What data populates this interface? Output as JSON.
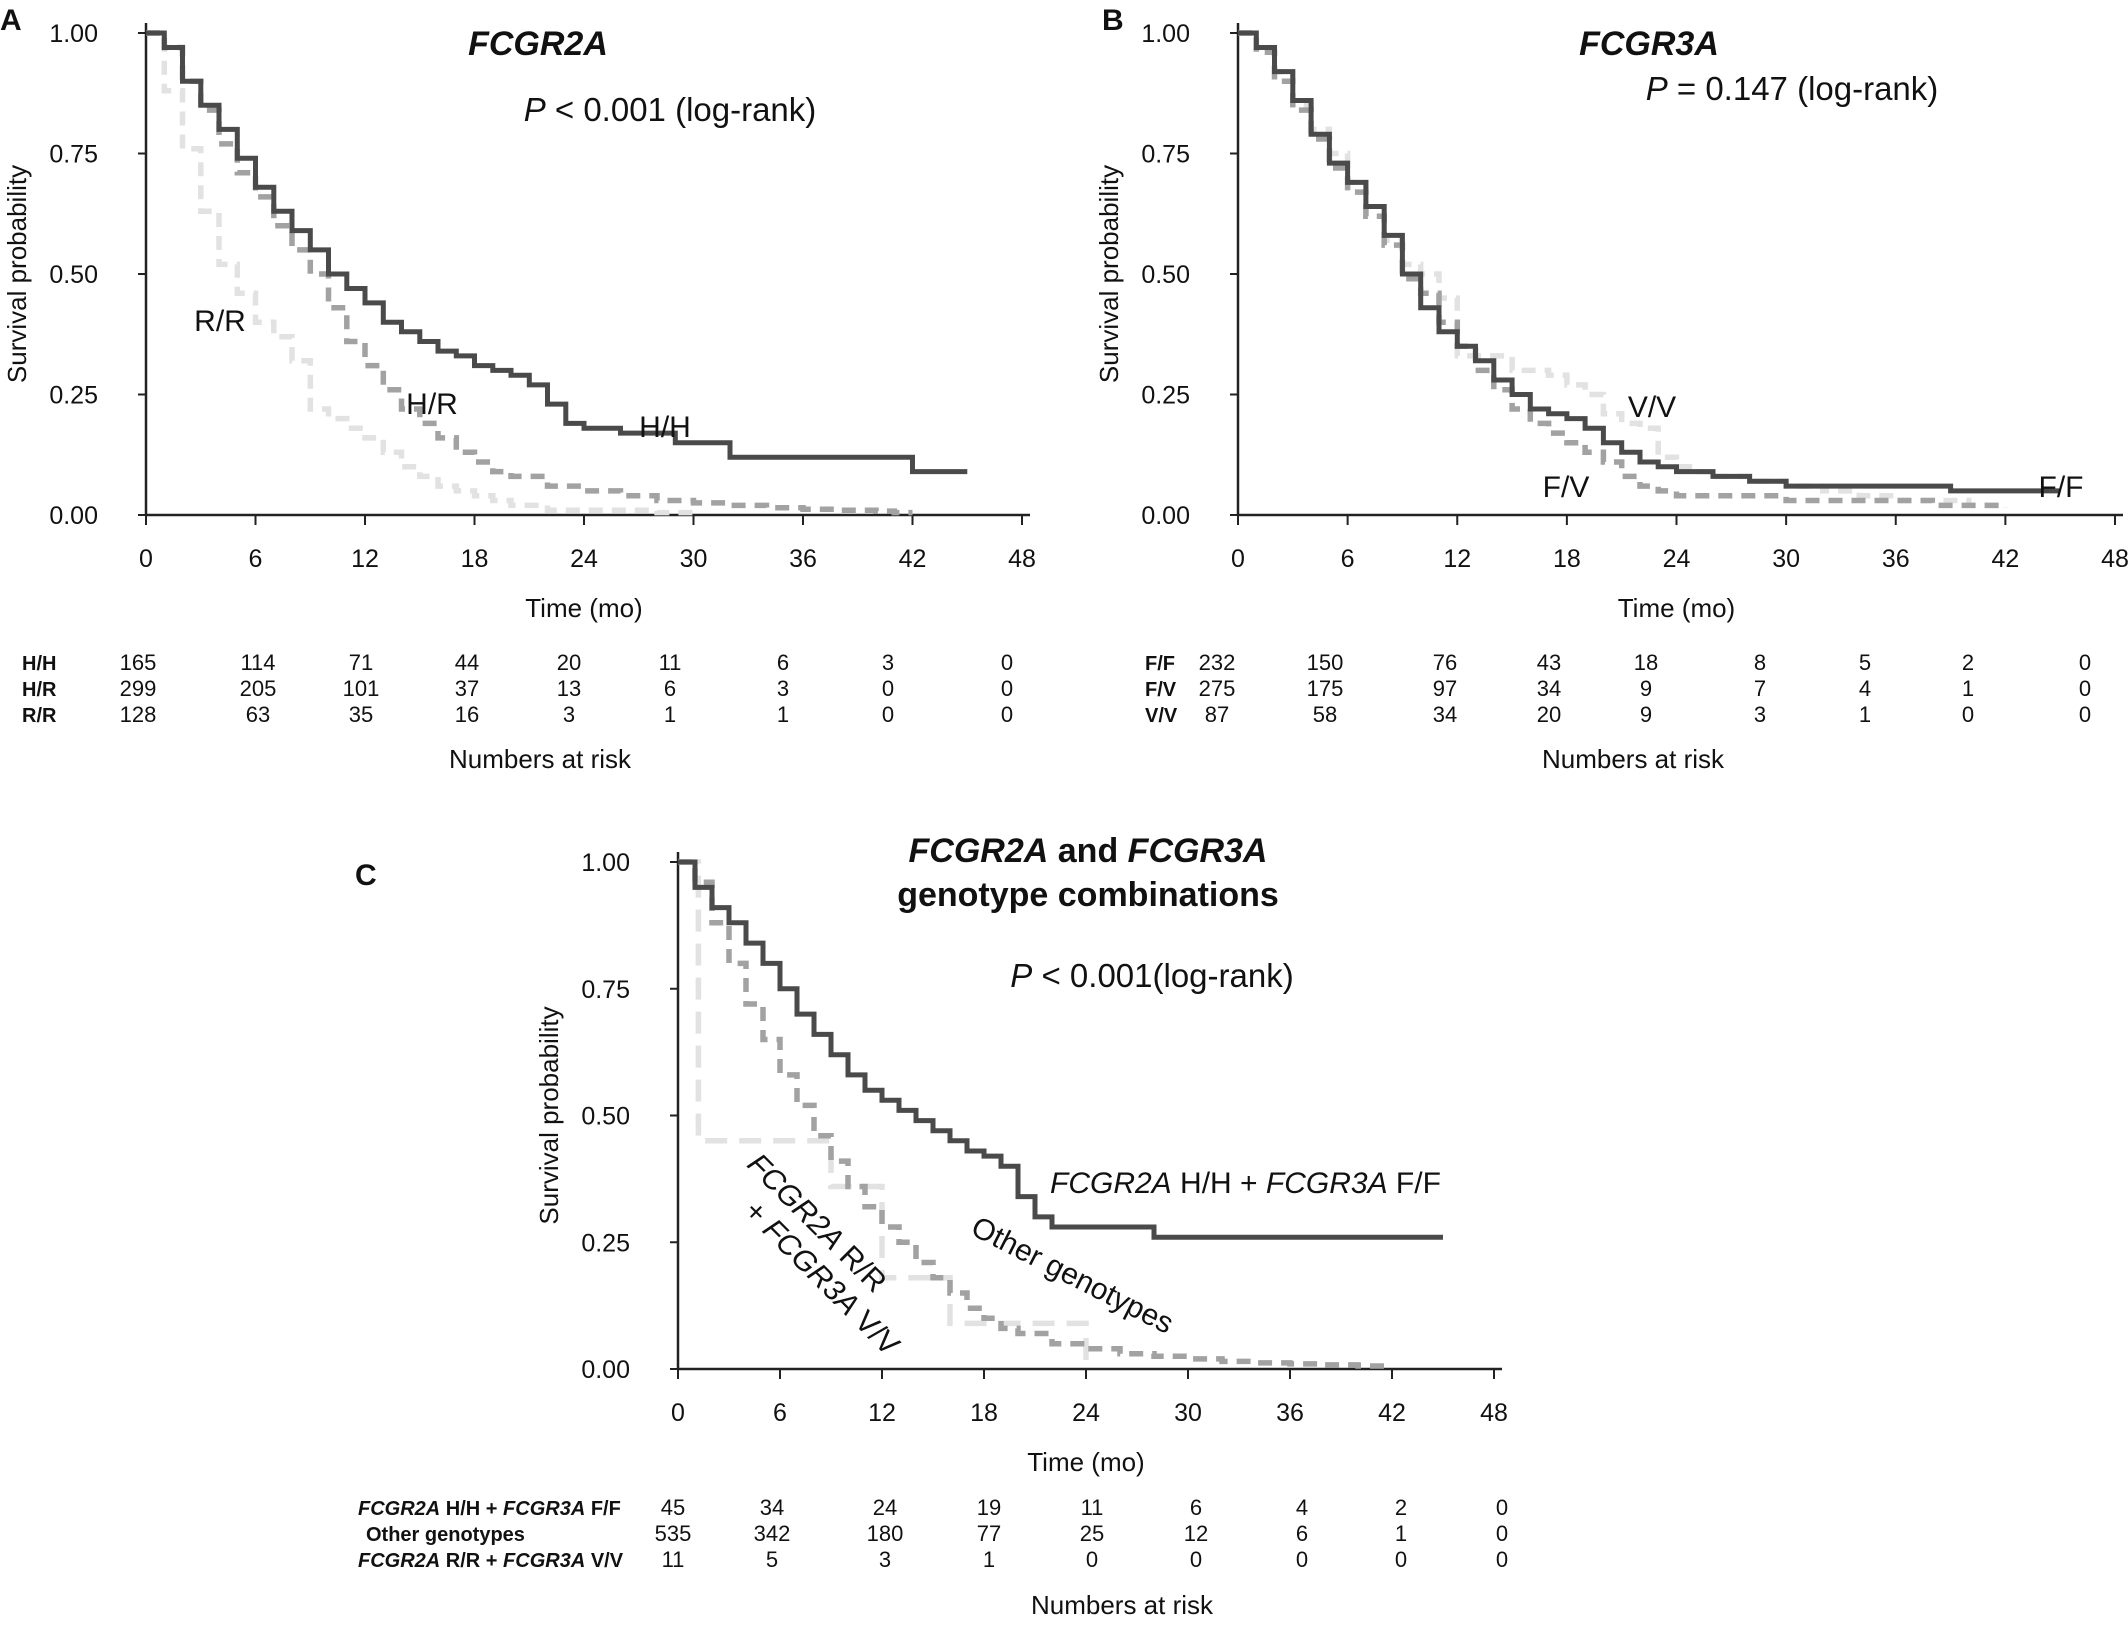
{
  "chart_data": [
    {
      "panel": "A",
      "type": "line",
      "title": "FCGR2A",
      "p_value": {
        "symbol": "P",
        "text": "< 0.001 (log-rank)"
      },
      "xlabel": "Time (mo)",
      "ylabel": "Survival probability",
      "xlim": [
        0,
        48
      ],
      "ylim": [
        0,
        1
      ],
      "xticks": [
        "0",
        "6",
        "12",
        "18",
        "24",
        "30",
        "36",
        "42",
        "48"
      ],
      "yticks": [
        "0.00",
        "0.25",
        "0.50",
        "0.75",
        "1.00"
      ],
      "curve_labels": [
        "R/R",
        "H/R",
        "H/H"
      ],
      "series": [
        {
          "label": "H/H",
          "color": "#4a4a4a",
          "dash": "solid",
          "x": [
            0,
            1,
            2,
            3,
            4,
            5,
            6,
            7,
            8,
            9,
            10,
            11,
            12,
            13,
            14,
            15,
            16,
            17,
            18,
            19,
            20,
            21,
            22,
            23,
            24,
            25,
            26,
            27,
            28,
            29,
            30,
            31,
            32,
            33,
            34,
            35,
            36,
            37,
            38,
            39,
            40,
            41,
            42,
            43,
            44,
            45
          ],
          "y": [
            1.0,
            0.97,
            0.9,
            0.85,
            0.8,
            0.74,
            0.68,
            0.63,
            0.59,
            0.55,
            0.5,
            0.47,
            0.44,
            0.4,
            0.38,
            0.36,
            0.34,
            0.33,
            0.31,
            0.3,
            0.29,
            0.27,
            0.23,
            0.19,
            0.18,
            0.18,
            0.17,
            0.17,
            0.17,
            0.15,
            0.15,
            0.15,
            0.12,
            0.12,
            0.12,
            0.12,
            0.12,
            0.12,
            0.12,
            0.12,
            0.12,
            0.12,
            0.09,
            0.09,
            0.09,
            0.09
          ]
        },
        {
          "label": "H/R",
          "color": "#a2a2a2",
          "dash": "dashed",
          "x": [
            0,
            1,
            2,
            3,
            4,
            5,
            6,
            7,
            8,
            9,
            10,
            11,
            12,
            13,
            14,
            15,
            16,
            17,
            18,
            19,
            20,
            22,
            24,
            26,
            28,
            30,
            32,
            34,
            36,
            38,
            40,
            41,
            42
          ],
          "y": [
            1.0,
            0.97,
            0.9,
            0.84,
            0.77,
            0.71,
            0.66,
            0.6,
            0.55,
            0.5,
            0.43,
            0.36,
            0.31,
            0.26,
            0.22,
            0.19,
            0.16,
            0.13,
            0.11,
            0.09,
            0.08,
            0.06,
            0.05,
            0.04,
            0.03,
            0.025,
            0.02,
            0.015,
            0.012,
            0.01,
            0.008,
            0.005,
            0.005
          ]
        },
        {
          "label": "R/R",
          "color": "#e2e2e2",
          "dash": "dashed",
          "x": [
            0,
            1,
            2,
            3,
            4,
            5,
            6,
            7,
            8,
            9,
            10,
            11,
            12,
            13,
            14,
            15,
            16,
            17,
            18,
            19,
            20,
            22,
            24,
            26,
            28,
            30
          ],
          "y": [
            1.0,
            0.88,
            0.76,
            0.63,
            0.52,
            0.46,
            0.4,
            0.37,
            0.32,
            0.22,
            0.2,
            0.18,
            0.16,
            0.13,
            0.1,
            0.08,
            0.06,
            0.05,
            0.04,
            0.03,
            0.02,
            0.01,
            0.01,
            0.01,
            0.005,
            0.0
          ]
        }
      ],
      "risk_table": {
        "title": "Numbers at risk",
        "rows": [
          {
            "label": "H/H",
            "values": [
              "165",
              "114",
              "71",
              "44",
              "20",
              "11",
              "6",
              "3",
              "0"
            ]
          },
          {
            "label": "H/R",
            "values": [
              "299",
              "205",
              "101",
              "37",
              "13",
              "6",
              "3",
              "0",
              "0"
            ]
          },
          {
            "label": "R/R",
            "values": [
              "128",
              "63",
              "35",
              "16",
              "3",
              "1",
              "1",
              "0",
              "0"
            ]
          }
        ]
      }
    },
    {
      "panel": "B",
      "type": "line",
      "title": "FCGR3A",
      "p_value": {
        "symbol": "P",
        "text": "= 0.147 (log-rank)"
      },
      "xlabel": "Time (mo)",
      "ylabel": "Survival probability",
      "xlim": [
        0,
        48
      ],
      "ylim": [
        0,
        1
      ],
      "xticks": [
        "0",
        "6",
        "12",
        "18",
        "24",
        "30",
        "36",
        "42",
        "48"
      ],
      "yticks": [
        "0.00",
        "0.25",
        "0.50",
        "0.75",
        "1.00"
      ],
      "curve_labels": [
        "V/V",
        "F/V",
        "F/F"
      ],
      "series": [
        {
          "label": "F/F",
          "color": "#4a4a4a",
          "dash": "solid",
          "x": [
            0,
            1,
            2,
            3,
            4,
            5,
            6,
            7,
            8,
            9,
            10,
            11,
            12,
            13,
            14,
            15,
            16,
            17,
            18,
            19,
            20,
            21,
            22,
            23,
            24,
            26,
            28,
            30,
            32,
            34,
            36,
            38,
            39,
            40,
            42,
            44,
            45
          ],
          "y": [
            1.0,
            0.97,
            0.92,
            0.86,
            0.79,
            0.73,
            0.69,
            0.64,
            0.58,
            0.5,
            0.43,
            0.38,
            0.35,
            0.32,
            0.28,
            0.25,
            0.22,
            0.21,
            0.2,
            0.18,
            0.15,
            0.13,
            0.11,
            0.1,
            0.09,
            0.08,
            0.07,
            0.06,
            0.06,
            0.06,
            0.06,
            0.06,
            0.05,
            0.05,
            0.05,
            0.05,
            0.05
          ]
        },
        {
          "label": "F/V",
          "color": "#a2a2a2",
          "dash": "dashed",
          "x": [
            0,
            1,
            2,
            3,
            4,
            5,
            6,
            7,
            8,
            9,
            10,
            11,
            12,
            13,
            14,
            15,
            16,
            17,
            18,
            19,
            20,
            21,
            22,
            23,
            24,
            26,
            28,
            30,
            32,
            34,
            36,
            38,
            40,
            42
          ],
          "y": [
            1.0,
            0.96,
            0.9,
            0.84,
            0.78,
            0.72,
            0.67,
            0.62,
            0.56,
            0.49,
            0.46,
            0.4,
            0.35,
            0.3,
            0.26,
            0.22,
            0.19,
            0.17,
            0.15,
            0.13,
            0.11,
            0.08,
            0.06,
            0.05,
            0.04,
            0.04,
            0.04,
            0.03,
            0.03,
            0.03,
            0.03,
            0.02,
            0.02,
            0.015
          ]
        },
        {
          "label": "V/V",
          "color": "#e2e2e2",
          "dash": "dashed",
          "x": [
            0,
            1,
            2,
            3,
            4,
            5,
            6,
            7,
            8,
            9,
            10,
            11,
            12,
            13,
            14,
            15,
            16,
            17,
            18,
            19,
            20,
            21,
            22,
            23,
            24,
            25,
            26,
            28,
            30,
            32,
            34,
            36,
            38,
            40,
            42
          ],
          "y": [
            1.0,
            0.97,
            0.92,
            0.85,
            0.8,
            0.75,
            0.69,
            0.62,
            0.57,
            0.52,
            0.5,
            0.45,
            0.33,
            0.33,
            0.33,
            0.3,
            0.3,
            0.29,
            0.27,
            0.25,
            0.21,
            0.19,
            0.18,
            0.12,
            0.1,
            0.09,
            0.08,
            0.07,
            0.06,
            0.05,
            0.04,
            0.03,
            0.03,
            0.02,
            0.02
          ]
        }
      ],
      "risk_table": {
        "title": "Numbers at risk",
        "rows": [
          {
            "label": "F/F",
            "values": [
              "232",
              "150",
              "76",
              "43",
              "18",
              "8",
              "5",
              "2",
              "0"
            ]
          },
          {
            "label": "F/V",
            "values": [
              "275",
              "175",
              "97",
              "34",
              "9",
              "7",
              "4",
              "1",
              "0"
            ]
          },
          {
            "label": "V/V",
            "values": [
              "87",
              "58",
              "34",
              "20",
              "9",
              "3",
              "1",
              "0",
              "0"
            ]
          }
        ]
      }
    },
    {
      "panel": "C",
      "type": "line",
      "title_line1_parts": [
        "FCGR2A",
        " and ",
        "FCGR3A"
      ],
      "title_line2": "genotype combinations",
      "p_value": {
        "symbol": "P",
        "text": "< 0.001(log-rank)"
      },
      "xlabel": "Time (mo)",
      "ylabel": "Survival probability",
      "xlim": [
        0,
        48
      ],
      "ylim": [
        0,
        1
      ],
      "xticks": [
        "0",
        "6",
        "12",
        "18",
        "24",
        "30",
        "36",
        "42",
        "48"
      ],
      "yticks": [
        "0.00",
        "0.25",
        "0.50",
        "0.75",
        "1.00"
      ],
      "curve_labels": {
        "hh_ff": [
          "FCGR2A",
          " H/H + ",
          "FCGR3A",
          " F/F"
        ],
        "other": "Other genotypes",
        "rr_vv_line1": [
          "FCGR2A",
          " R/R"
        ],
        "rr_vv_line2": [
          "+ ",
          "FCGR3A",
          " V/V"
        ]
      },
      "series": [
        {
          "label": "FCGR2A H/H + FCGR3A F/F",
          "color": "#4a4a4a",
          "dash": "solid",
          "x": [
            0,
            1,
            2,
            3,
            4,
            5,
            6,
            7,
            8,
            9,
            10,
            11,
            12,
            13,
            14,
            15,
            16,
            17,
            18,
            19,
            20,
            21,
            22,
            23,
            24,
            25,
            26,
            27,
            28,
            29,
            30,
            32,
            34,
            36,
            38,
            40,
            42,
            44,
            45
          ],
          "y": [
            1.0,
            0.95,
            0.91,
            0.88,
            0.84,
            0.8,
            0.75,
            0.7,
            0.66,
            0.62,
            0.58,
            0.55,
            0.53,
            0.51,
            0.49,
            0.47,
            0.45,
            0.43,
            0.42,
            0.4,
            0.34,
            0.3,
            0.28,
            0.28,
            0.28,
            0.28,
            0.28,
            0.28,
            0.26,
            0.26,
            0.26,
            0.26,
            0.26,
            0.26,
            0.26,
            0.26,
            0.26,
            0.26,
            0.26
          ]
        },
        {
          "label": "Other genotypes",
          "color": "#a2a2a2",
          "dash": "dashed",
          "x": [
            0,
            1,
            2,
            3,
            4,
            5,
            6,
            7,
            8,
            9,
            10,
            11,
            12,
            13,
            14,
            15,
            16,
            17,
            18,
            19,
            20,
            22,
            24,
            26,
            28,
            30,
            32,
            34,
            36,
            38,
            40,
            42
          ],
          "y": [
            1.0,
            0.96,
            0.88,
            0.8,
            0.72,
            0.65,
            0.58,
            0.52,
            0.46,
            0.41,
            0.36,
            0.32,
            0.28,
            0.25,
            0.21,
            0.18,
            0.15,
            0.12,
            0.1,
            0.08,
            0.07,
            0.05,
            0.04,
            0.03,
            0.025,
            0.02,
            0.015,
            0.012,
            0.01,
            0.008,
            0.006,
            0.005
          ]
        },
        {
          "label": "FCGR2A R/R + FCGR3A V/V",
          "color": "#e2e2e2",
          "dash": "dashed",
          "x": [
            0,
            0.8,
            1.2,
            8.5,
            9,
            11.5,
            12,
            15.5,
            16,
            23.5,
            24
          ],
          "y": [
            1.0,
            1.0,
            0.45,
            0.45,
            0.36,
            0.36,
            0.18,
            0.18,
            0.09,
            0.09,
            0.0
          ]
        }
      ],
      "risk_table": {
        "title": "Numbers at risk",
        "rows": [
          {
            "label_parts": [
              "FCGR2A",
              " H/H + ",
              "FCGR3A",
              " F/F"
            ],
            "values": [
              "45",
              "34",
              "24",
              "19",
              "11",
              "6",
              "4",
              "2",
              "0"
            ]
          },
          {
            "label": "Other genotypes",
            "values": [
              "535",
              "342",
              "180",
              "77",
              "25",
              "12",
              "6",
              "1",
              "0"
            ]
          },
          {
            "label_parts": [
              "FCGR2A",
              " R/R + ",
              "FCGR3A",
              " V/V"
            ],
            "values": [
              "11",
              "5",
              "3",
              "1",
              "0",
              "0",
              "0",
              "0",
              "0"
            ]
          }
        ]
      }
    }
  ]
}
